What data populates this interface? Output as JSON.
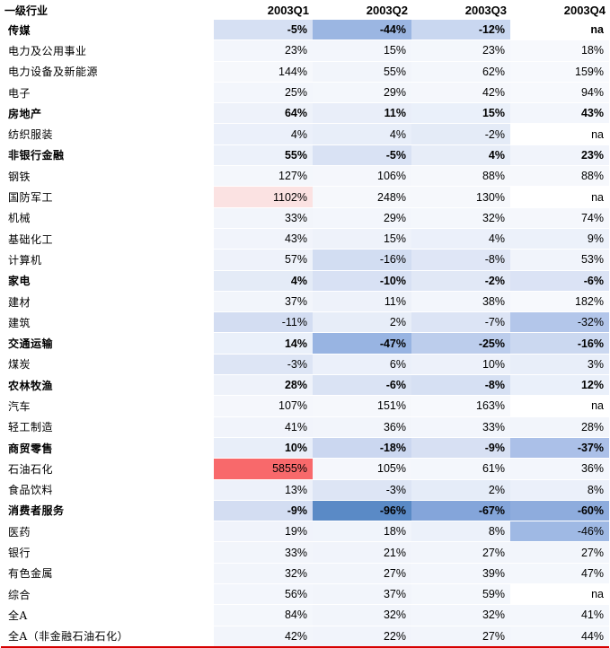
{
  "header": {
    "label": "一级行业",
    "columns": [
      "2003Q1",
      "2003Q2",
      "2003Q3",
      "2003Q4"
    ]
  },
  "rows": [
    {
      "name": "传媒",
      "bold": true,
      "values": [
        "-5%",
        "-44%",
        "-12%",
        "na"
      ],
      "shades": [
        "#d6e0f3",
        "#9bb6e2",
        "#c9d7f0",
        "#ffffff"
      ]
    },
    {
      "name": "电力及公用事业",
      "bold": false,
      "values": [
        "23%",
        "15%",
        "23%",
        "18%"
      ],
      "shades": [
        "#f3f6fc",
        "#f3f6fc",
        "#f4f7fc",
        "#f7f9fd"
      ]
    },
    {
      "name": "电力设备及新能源",
      "bold": false,
      "values": [
        "144%",
        "55%",
        "62%",
        "159%"
      ],
      "shades": [
        "#f6f8fc",
        "#f2f5fb",
        "#f4f7fc",
        "#f7f9fd"
      ]
    },
    {
      "name": "电子",
      "bold": false,
      "values": [
        "25%",
        "29%",
        "42%",
        "94%"
      ],
      "shades": [
        "#f3f6fc",
        "#f4f7fc",
        "#f5f7fc",
        "#f7f9fd"
      ]
    },
    {
      "name": "房地产",
      "bold": true,
      "values": [
        "64%",
        "11%",
        "15%",
        "43%"
      ],
      "shades": [
        "#eef2fa",
        "#e9eef9",
        "#eaf0fa",
        "#f3f6fc"
      ]
    },
    {
      "name": "纺织服装",
      "bold": false,
      "values": [
        "4%",
        "4%",
        "-2%",
        "na"
      ],
      "shades": [
        "#ebf0fa",
        "#e8eef9",
        "#e4ebf7",
        "#ffffff"
      ]
    },
    {
      "name": "非银行金融",
      "bold": true,
      "values": [
        "55%",
        "-5%",
        "4%",
        "23%"
      ],
      "shades": [
        "#ecf1fa",
        "#d9e2f4",
        "#e7edf8",
        "#f1f4fb"
      ]
    },
    {
      "name": "钢铁",
      "bold": false,
      "values": [
        "127%",
        "106%",
        "88%",
        "88%"
      ],
      "shades": [
        "#f4f7fc",
        "#f5f7fc",
        "#f6f8fc",
        "#f6f8fc"
      ]
    },
    {
      "name": "国防军工",
      "bold": false,
      "values": [
        "1102%",
        "248%",
        "130%",
        "na"
      ],
      "shades": [
        "#fbe2e2",
        "#f6f8fc",
        "#f6f8fc",
        "#ffffff"
      ]
    },
    {
      "name": "机械",
      "bold": false,
      "values": [
        "33%",
        "29%",
        "32%",
        "74%"
      ],
      "shades": [
        "#f2f5fb",
        "#f3f6fc",
        "#f4f7fc",
        "#f5f7fc"
      ]
    },
    {
      "name": "基础化工",
      "bold": false,
      "values": [
        "43%",
        "15%",
        "4%",
        "9%"
      ],
      "shades": [
        "#f1f4fb",
        "#eef2fa",
        "#ebf0fa",
        "#ecf1fa"
      ]
    },
    {
      "name": "计算机",
      "bold": false,
      "values": [
        "57%",
        "-16%",
        "-8%",
        "53%"
      ],
      "shades": [
        "#eef2fa",
        "#d2ddf2",
        "#dfe6f6",
        "#f1f4fb"
      ]
    },
    {
      "name": "家电",
      "bold": true,
      "values": [
        "4%",
        "-10%",
        "-2%",
        "-6%"
      ],
      "shades": [
        "#e4ebf7",
        "#d8e1f4",
        "#e1e8f6",
        "#dbe3f5"
      ]
    },
    {
      "name": "建材",
      "bold": false,
      "values": [
        "37%",
        "11%",
        "38%",
        "182%"
      ],
      "shades": [
        "#f2f5fb",
        "#eef2fa",
        "#f3f6fc",
        "#f7f9fd"
      ]
    },
    {
      "name": "建筑",
      "bold": false,
      "values": [
        "-11%",
        "2%",
        "-7%",
        "-32%"
      ],
      "shades": [
        "#d3ddf2",
        "#e7edf8",
        "#dce4f5",
        "#b3c6ea"
      ]
    },
    {
      "name": "交通运输",
      "bold": true,
      "values": [
        "14%",
        "-47%",
        "-25%",
        "-16%"
      ],
      "shades": [
        "#eaf0fa",
        "#98b4e2",
        "#bccdec",
        "#cbd8f0"
      ]
    },
    {
      "name": "煤炭",
      "bold": false,
      "values": [
        "-3%",
        "6%",
        "10%",
        "3%"
      ],
      "shades": [
        "#dde5f5",
        "#ebf0fa",
        "#edf1fa",
        "#e8eef9"
      ]
    },
    {
      "name": "农林牧渔",
      "bold": true,
      "values": [
        "28%",
        "-6%",
        "-8%",
        "12%"
      ],
      "shades": [
        "#eef2fa",
        "#dae3f4",
        "#d6e0f3",
        "#eaf0fa"
      ]
    },
    {
      "name": "汽车",
      "bold": false,
      "values": [
        "107%",
        "151%",
        "163%",
        "na"
      ],
      "shades": [
        "#f5f7fc",
        "#f6f8fc",
        "#f7f9fd",
        "#ffffff"
      ]
    },
    {
      "name": "轻工制造",
      "bold": false,
      "values": [
        "41%",
        "36%",
        "33%",
        "28%"
      ],
      "shades": [
        "#f1f4fb",
        "#f2f5fb",
        "#f3f6fc",
        "#f2f5fb"
      ]
    },
    {
      "name": "商贸零售",
      "bold": true,
      "values": [
        "10%",
        "-18%",
        "-9%",
        "-37%"
      ],
      "shades": [
        "#e8eef9",
        "#cbd7f0",
        "#d7e0f3",
        "#abc0e8"
      ]
    },
    {
      "name": "石油石化",
      "bold": false,
      "values": [
        "5855%",
        "105%",
        "61%",
        "36%"
      ],
      "shades": [
        "#f8696b",
        "#f5f7fc",
        "#f4f7fc",
        "#f3f6fc"
      ]
    },
    {
      "name": "食品饮料",
      "bold": false,
      "values": [
        "13%",
        "-3%",
        "2%",
        "8%"
      ],
      "shades": [
        "#edf1fa",
        "#dde5f5",
        "#e5ecf8",
        "#ebf0fa"
      ]
    },
    {
      "name": "消费者服务",
      "bold": true,
      "values": [
        "-9%",
        "-96%",
        "-67%",
        "-60%"
      ],
      "shades": [
        "#d3ddf2",
        "#5a8ac6",
        "#84a5da",
        "#8eacdd"
      ]
    },
    {
      "name": "医药",
      "bold": false,
      "values": [
        "19%",
        "18%",
        "8%",
        "-46%"
      ],
      "shades": [
        "#f0f3fb",
        "#f0f4fb",
        "#ecf1fa",
        "#9fb9e4"
      ]
    },
    {
      "name": "银行",
      "bold": false,
      "values": [
        "33%",
        "21%",
        "27%",
        "27%"
      ],
      "shades": [
        "#f2f5fb",
        "#f1f4fb",
        "#f2f5fb",
        "#f2f5fb"
      ]
    },
    {
      "name": "有色金属",
      "bold": false,
      "values": [
        "32%",
        "27%",
        "39%",
        "47%"
      ],
      "shades": [
        "#f2f5fb",
        "#f2f5fb",
        "#f3f6fc",
        "#f4f7fc"
      ]
    },
    {
      "name": "综合",
      "bold": false,
      "values": [
        "56%",
        "37%",
        "59%",
        "na"
      ],
      "shades": [
        "#f3f6fc",
        "#f2f5fb",
        "#f4f7fc",
        "#ffffff"
      ]
    },
    {
      "name": "全A",
      "bold": false,
      "values": [
        "84%",
        "32%",
        "32%",
        "41%"
      ],
      "shades": [
        "#f4f7fc",
        "#f2f5fb",
        "#f3f6fc",
        "#f4f7fc"
      ]
    },
    {
      "name": "全A（非金融石油石化）",
      "bold": false,
      "values": [
        "42%",
        "22%",
        "27%",
        "44%"
      ],
      "shades": [
        "#f2f5fb",
        "#f1f4fb",
        "#f2f5fb",
        "#f4f7fc"
      ]
    }
  ]
}
